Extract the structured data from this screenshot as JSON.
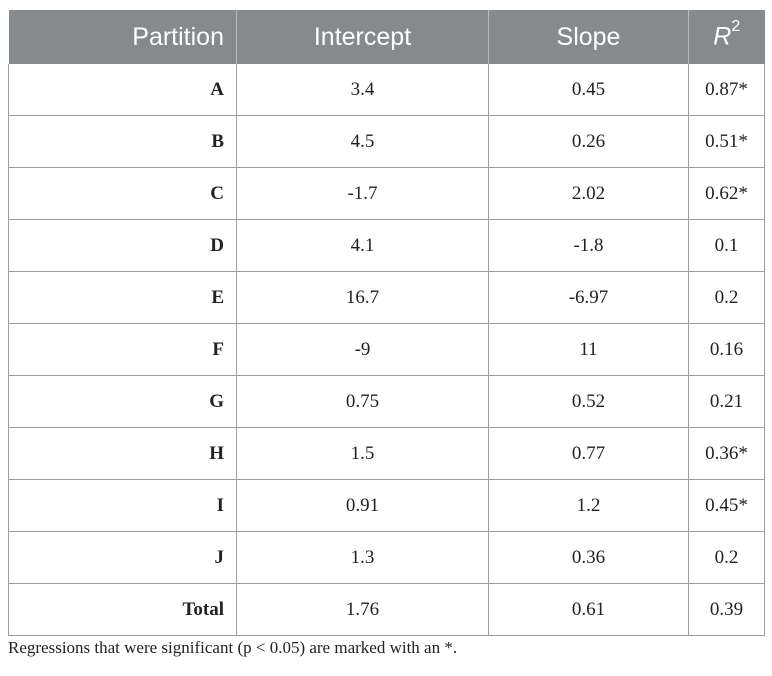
{
  "table": {
    "headers": {
      "partition": "Partition",
      "intercept": "Intercept",
      "slope": "Slope",
      "r2_letter": "R",
      "r2_exp": "2"
    },
    "rows": [
      {
        "partition": "A",
        "intercept": "3.4",
        "slope": "0.45",
        "r2": "0.87*"
      },
      {
        "partition": "B",
        "intercept": "4.5",
        "slope": "0.26",
        "r2": "0.51*"
      },
      {
        "partition": "C",
        "intercept": "-1.7",
        "slope": "2.02",
        "r2": "0.62*"
      },
      {
        "partition": "D",
        "intercept": "4.1",
        "slope": "-1.8",
        "r2": "0.1"
      },
      {
        "partition": "E",
        "intercept": "16.7",
        "slope": "-6.97",
        "r2": "0.2"
      },
      {
        "partition": "F",
        "intercept": "-9",
        "slope": "11",
        "r2": "0.16"
      },
      {
        "partition": "G",
        "intercept": "0.75",
        "slope": "0.52",
        "r2": "0.21"
      },
      {
        "partition": "H",
        "intercept": "1.5",
        "slope": "0.77",
        "r2": "0.36*"
      },
      {
        "partition": "I",
        "intercept": "0.91",
        "slope": "1.2",
        "r2": "0.45*"
      },
      {
        "partition": "J",
        "intercept": "1.3",
        "slope": "0.36",
        "r2": "0.2"
      },
      {
        "partition": "Total",
        "intercept": "1.76",
        "slope": "0.61",
        "r2": "0.39"
      }
    ]
  },
  "footnote": "Regressions that were significant (p < 0.05) are marked with an *.",
  "colors": {
    "header_bg": "#868a8c",
    "header_text": "#ffffff",
    "grid": "#9c9fa1"
  }
}
